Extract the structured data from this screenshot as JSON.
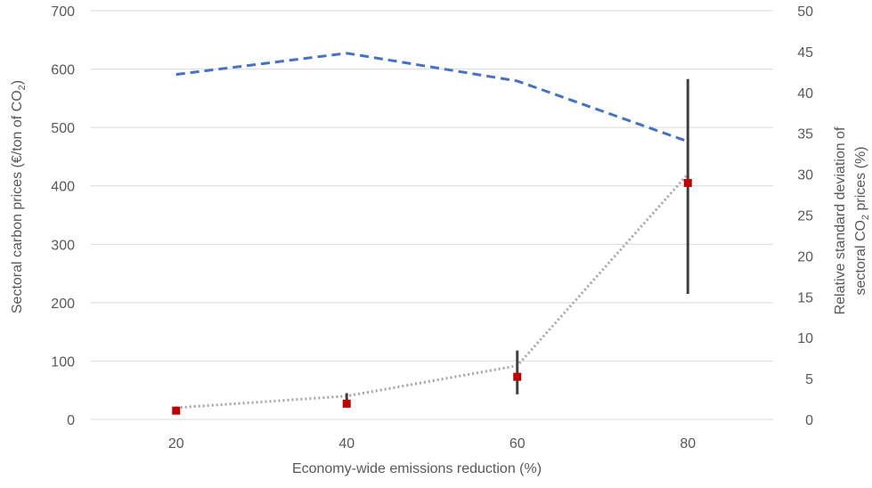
{
  "chart_data": {
    "type": "line",
    "xlabel": "Economy-wide emissions reduction (%)",
    "ylabel": {
      "pre": "Sectoral carbon prices (€/ton of CO",
      "sub": "2",
      "post": ")"
    },
    "y2label": {
      "line1": "Relative standard deviation of",
      "line2_pre": "sectoral CO",
      "line2_sub": "2",
      "line2_post": " prices (%)"
    },
    "xlim": [
      10,
      90
    ],
    "ylim": [
      0,
      700
    ],
    "y2lim": [
      0,
      50
    ],
    "x_ticks": [
      20,
      40,
      60,
      80
    ],
    "y_ticks": [
      0,
      100,
      200,
      300,
      400,
      500,
      600,
      700
    ],
    "y2_ticks": [
      0,
      5,
      10,
      15,
      20,
      25,
      30,
      35,
      40,
      45,
      50
    ],
    "grid": true,
    "series": [
      {
        "style": "dashed",
        "color": "#4472C4",
        "axis": "right",
        "x": [
          20,
          40,
          60,
          80
        ],
        "values": [
          42.2,
          44.8,
          41.4,
          34.0
        ]
      },
      {
        "style": "dotted",
        "color": "#A6A6A6",
        "axis": "left",
        "x": [
          20,
          40,
          60,
          80
        ],
        "values": [
          20,
          40,
          92,
          420
        ]
      },
      {
        "style": "markers",
        "color": "#C00000",
        "axis": "left",
        "x": [
          20,
          40,
          60,
          80
        ],
        "values": [
          15,
          27,
          73,
          405
        ],
        "range_low": [
          13,
          20,
          43,
          215
        ],
        "range_high": [
          20,
          45,
          118,
          583
        ]
      }
    ]
  }
}
